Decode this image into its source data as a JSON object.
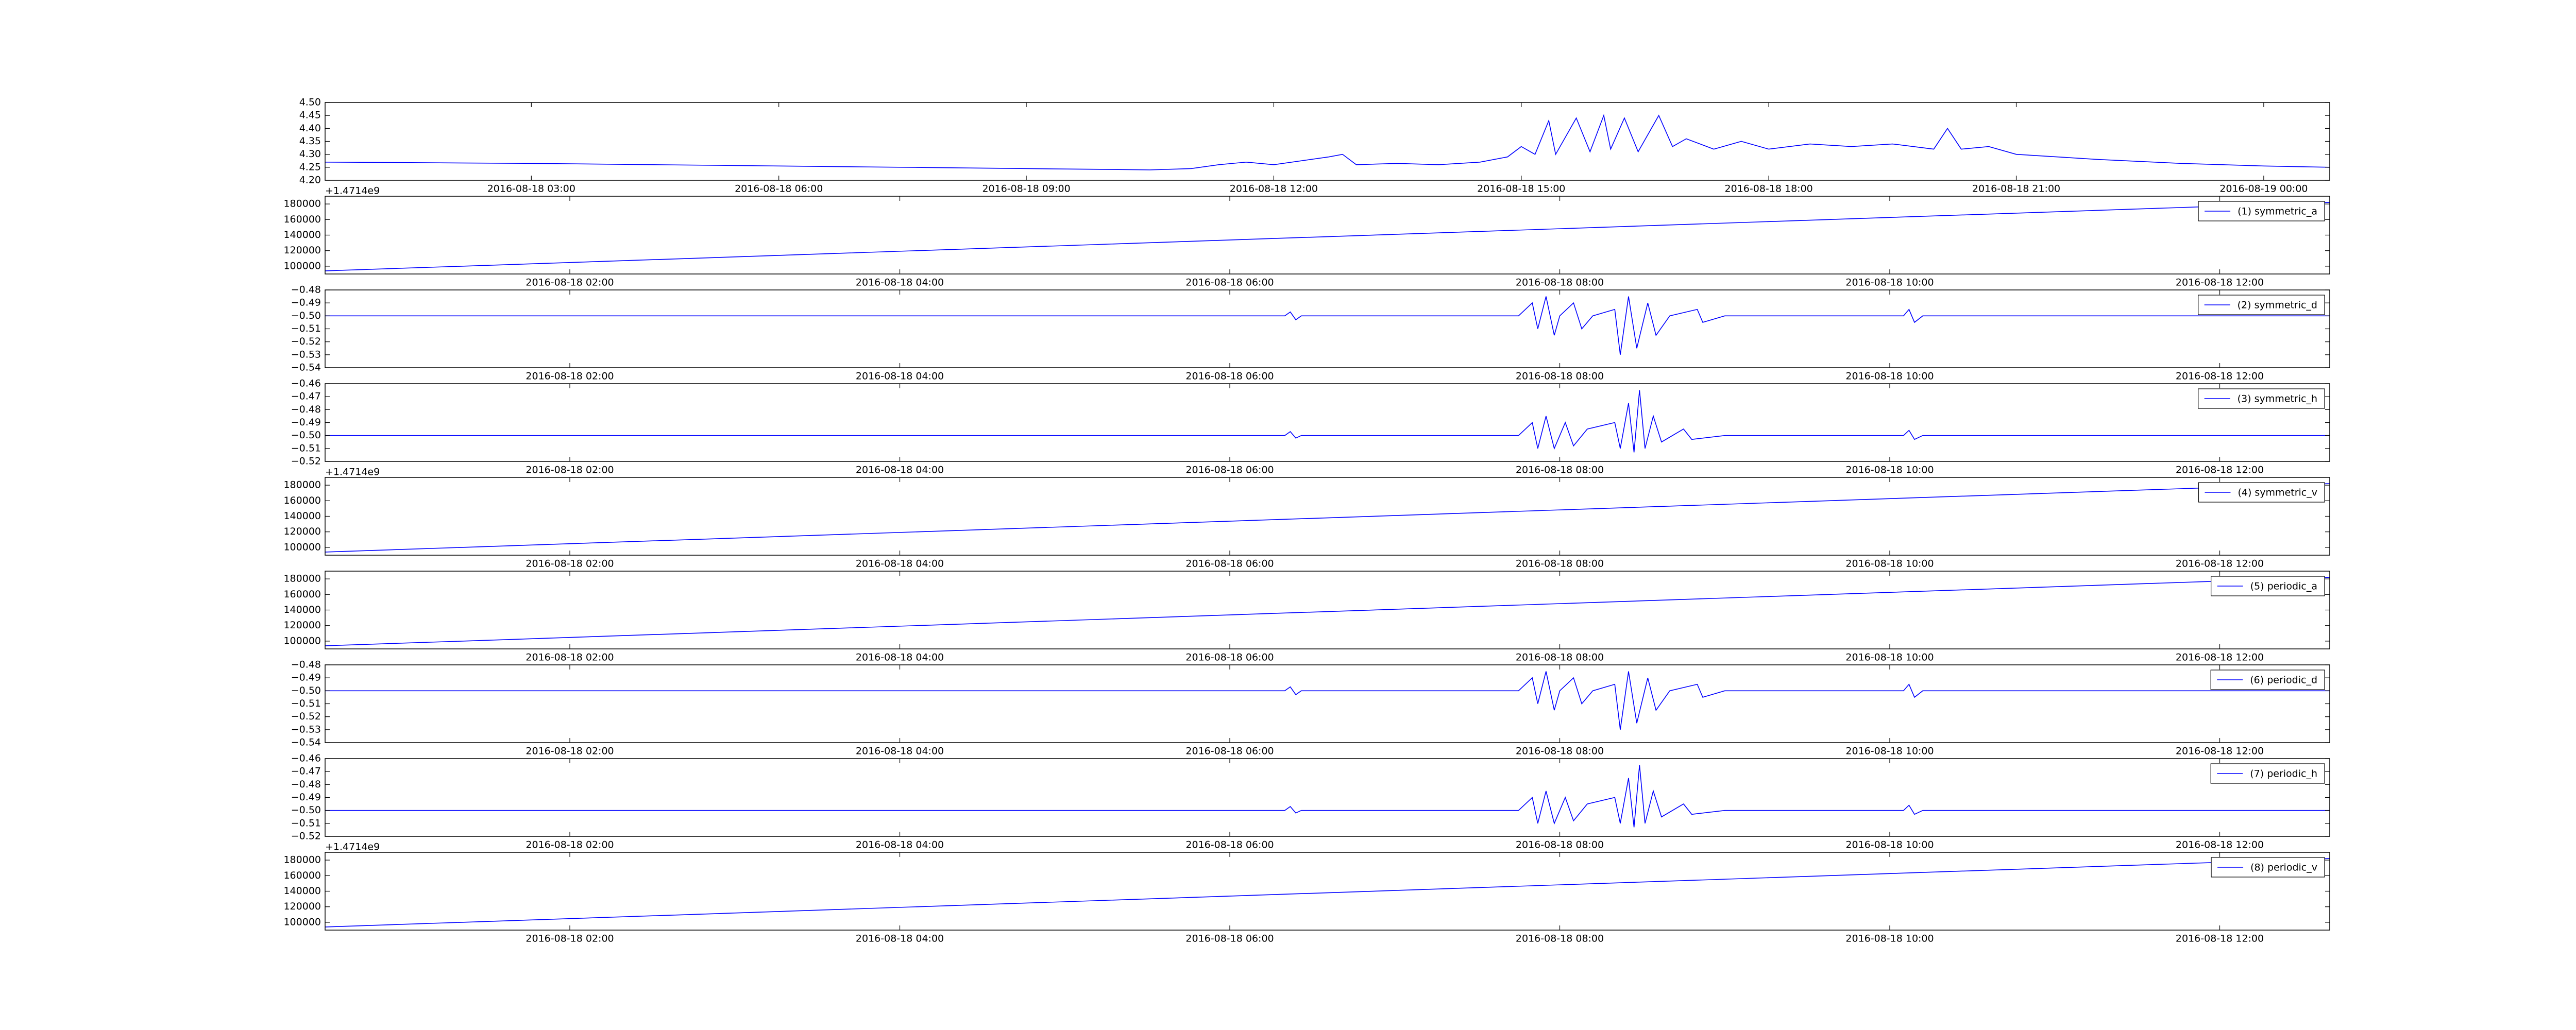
{
  "chart_data": [
    {
      "type": "line",
      "xlim": [
        "2016-08-18 00:30",
        "2016-08-19 00:48"
      ],
      "ylim": [
        4.2,
        4.5
      ],
      "xticks": [
        "2016-08-18 03:00",
        "2016-08-18 06:00",
        "2016-08-18 09:00",
        "2016-08-18 12:00",
        "2016-08-18 15:00",
        "2016-08-18 18:00",
        "2016-08-18 21:00",
        "2016-08-19 00:00"
      ],
      "yticks": [
        {
          "value": 4.2,
          "label": "4.20"
        },
        4.25,
        {
          "value": 4.3,
          "label": "4.30"
        },
        4.35,
        {
          "value": 4.4,
          "label": "4.40"
        },
        4.45,
        {
          "value": 4.5,
          "label": "4.50"
        }
      ],
      "x": [
        "2016-08-18 00:30",
        "2016-08-18 03:00",
        "2016-08-18 06:00",
        "2016-08-18 09:00",
        "2016-08-18 10:30",
        "2016-08-18 11:00",
        "2016-08-18 11:20",
        "2016-08-18 11:40",
        "2016-08-18 12:00",
        "2016-08-18 12:40",
        "2016-08-18 12:50",
        "2016-08-18 13:00",
        "2016-08-18 13:30",
        "2016-08-18 14:00",
        "2016-08-18 14:30",
        "2016-08-18 14:50",
        "2016-08-18 15:00",
        "2016-08-18 15:10",
        "2016-08-18 15:20",
        "2016-08-18 15:25",
        "2016-08-18 15:40",
        "2016-08-18 15:50",
        "2016-08-18 16:00",
        "2016-08-18 16:05",
        "2016-08-18 16:15",
        "2016-08-18 16:25",
        "2016-08-18 16:40",
        "2016-08-18 16:50",
        "2016-08-18 17:00",
        "2016-08-18 17:20",
        "2016-08-18 17:40",
        "2016-08-18 18:00",
        "2016-08-18 18:30",
        "2016-08-18 19:00",
        "2016-08-18 19:30",
        "2016-08-18 20:00",
        "2016-08-18 20:10",
        "2016-08-18 20:20",
        "2016-08-18 20:40",
        "2016-08-18 21:00",
        "2016-08-18 21:30",
        "2016-08-18 22:00",
        "2016-08-18 23:00",
        "2016-08-19 00:00",
        "2016-08-19 00:48"
      ],
      "series": [
        {
          "color": "#0000ff",
          "values": [
            4.27,
            4.265,
            4.255,
            4.245,
            4.24,
            4.245,
            4.26,
            4.27,
            4.26,
            4.29,
            4.3,
            4.26,
            4.265,
            4.26,
            4.27,
            4.29,
            4.33,
            4.3,
            4.43,
            4.3,
            4.44,
            4.31,
            4.45,
            4.32,
            4.44,
            4.31,
            4.45,
            4.33,
            4.36,
            4.32,
            4.35,
            4.32,
            4.34,
            4.33,
            4.34,
            4.32,
            4.4,
            4.32,
            4.33,
            4.3,
            4.29,
            4.28,
            4.265,
            4.255,
            4.25
          ]
        }
      ]
    },
    {
      "type": "line",
      "xlim": [
        "2016-08-18 00:31",
        "2016-08-18 12:40"
      ],
      "ylim": [
        90000,
        190000
      ],
      "y_offset": "+1.4714e9",
      "legend": "upper right",
      "xticks": [
        "2016-08-18 02:00",
        "2016-08-18 04:00",
        "2016-08-18 06:00",
        "2016-08-18 08:00",
        "2016-08-18 10:00",
        "2016-08-18 12:00"
      ],
      "yticks": [
        100000,
        120000,
        140000,
        160000,
        180000
      ],
      "x": [
        "2016-08-18 00:31",
        "2016-08-18 12:40"
      ],
      "series": [
        {
          "name": "(1) symmetric_a",
          "color": "#0000ff",
          "values": [
            94000,
            182000
          ]
        }
      ]
    },
    {
      "type": "line",
      "xlim": [
        "2016-08-18 00:31",
        "2016-08-18 12:40"
      ],
      "ylim": [
        -0.54,
        -0.48
      ],
      "legend": "upper right",
      "xticks": [
        "2016-08-18 02:00",
        "2016-08-18 04:00",
        "2016-08-18 06:00",
        "2016-08-18 08:00",
        "2016-08-18 10:00",
        "2016-08-18 12:00"
      ],
      "yticks": [
        {
          "value": -0.54,
          "label": "−0.54"
        },
        {
          "value": -0.53,
          "label": "−0.53"
        },
        {
          "value": -0.52,
          "label": "−0.52"
        },
        {
          "value": -0.51,
          "label": "−0.51"
        },
        {
          "value": -0.5,
          "label": "−0.50"
        },
        {
          "value": -0.49,
          "label": "−0.49"
        },
        {
          "value": -0.48,
          "label": "−0.48"
        }
      ],
      "x": [
        "2016-08-18 00:31",
        "2016-08-18 06:20",
        "2016-08-18 06:22",
        "2016-08-18 06:24",
        "2016-08-18 06:26",
        "2016-08-18 07:45",
        "2016-08-18 07:50",
        "2016-08-18 07:52",
        "2016-08-18 07:55",
        "2016-08-18 07:58",
        "2016-08-18 08:00",
        "2016-08-18 08:05",
        "2016-08-18 08:08",
        "2016-08-18 08:12",
        "2016-08-18 08:20",
        "2016-08-18 08:22",
        "2016-08-18 08:25",
        "2016-08-18 08:28",
        "2016-08-18 08:32",
        "2016-08-18 08:35",
        "2016-08-18 08:40",
        "2016-08-18 08:50",
        "2016-08-18 08:52",
        "2016-08-18 09:00",
        "2016-08-18 10:05",
        "2016-08-18 10:07",
        "2016-08-18 10:09",
        "2016-08-18 10:12",
        "2016-08-18 12:40"
      ],
      "series": [
        {
          "name": "(2) symmetric_d",
          "color": "#0000ff",
          "values": [
            -0.5,
            -0.5,
            -0.497,
            -0.503,
            -0.5,
            -0.5,
            -0.49,
            -0.51,
            -0.485,
            -0.515,
            -0.5,
            -0.49,
            -0.51,
            -0.5,
            -0.495,
            -0.53,
            -0.485,
            -0.525,
            -0.49,
            -0.515,
            -0.5,
            -0.495,
            -0.505,
            -0.5,
            -0.5,
            -0.495,
            -0.505,
            -0.5,
            -0.5
          ]
        }
      ]
    },
    {
      "type": "line",
      "xlim": [
        "2016-08-18 00:31",
        "2016-08-18 12:40"
      ],
      "ylim": [
        -0.52,
        -0.46
      ],
      "legend": "upper right",
      "xticks": [
        "2016-08-18 02:00",
        "2016-08-18 04:00",
        "2016-08-18 06:00",
        "2016-08-18 08:00",
        "2016-08-18 10:00",
        "2016-08-18 12:00"
      ],
      "yticks": [
        {
          "value": -0.52,
          "label": "−0.52"
        },
        {
          "value": -0.51,
          "label": "−0.51"
        },
        {
          "value": -0.5,
          "label": "−0.50"
        },
        {
          "value": -0.49,
          "label": "−0.49"
        },
        {
          "value": -0.48,
          "label": "−0.48"
        },
        {
          "value": -0.47,
          "label": "−0.47"
        },
        {
          "value": -0.46,
          "label": "−0.46"
        }
      ],
      "x": [
        "2016-08-18 00:31",
        "2016-08-18 06:20",
        "2016-08-18 06:22",
        "2016-08-18 06:24",
        "2016-08-18 06:26",
        "2016-08-18 07:45",
        "2016-08-18 07:50",
        "2016-08-18 07:52",
        "2016-08-18 07:55",
        "2016-08-18 07:58",
        "2016-08-18 08:02",
        "2016-08-18 08:05",
        "2016-08-18 08:10",
        "2016-08-18 08:20",
        "2016-08-18 08:22",
        "2016-08-18 08:25",
        "2016-08-18 08:27",
        "2016-08-18 08:29",
        "2016-08-18 08:31",
        "2016-08-18 08:34",
        "2016-08-18 08:37",
        "2016-08-18 08:45",
        "2016-08-18 08:48",
        "2016-08-18 09:00",
        "2016-08-18 10:05",
        "2016-08-18 10:07",
        "2016-08-18 10:09",
        "2016-08-18 10:12",
        "2016-08-18 12:40"
      ],
      "series": [
        {
          "name": "(3) symmetric_h",
          "color": "#0000ff",
          "values": [
            -0.5,
            -0.5,
            -0.497,
            -0.502,
            -0.5,
            -0.5,
            -0.49,
            -0.51,
            -0.485,
            -0.51,
            -0.49,
            -0.508,
            -0.495,
            -0.49,
            -0.51,
            -0.475,
            -0.513,
            -0.465,
            -0.51,
            -0.485,
            -0.505,
            -0.495,
            -0.503,
            -0.5,
            -0.5,
            -0.496,
            -0.503,
            -0.5,
            -0.5
          ]
        }
      ]
    },
    {
      "type": "line",
      "xlim": [
        "2016-08-18 00:31",
        "2016-08-18 12:40"
      ],
      "ylim": [
        90000,
        190000
      ],
      "y_offset": "+1.4714e9",
      "legend": "upper right",
      "xticks": [
        "2016-08-18 02:00",
        "2016-08-18 04:00",
        "2016-08-18 06:00",
        "2016-08-18 08:00",
        "2016-08-18 10:00",
        "2016-08-18 12:00"
      ],
      "yticks": [
        100000,
        120000,
        140000,
        160000,
        180000
      ],
      "x": [
        "2016-08-18 00:31",
        "2016-08-18 12:40"
      ],
      "series": [
        {
          "name": "(4) symmetric_v",
          "color": "#0000ff",
          "values": [
            94000,
            182000
          ]
        }
      ]
    },
    {
      "type": "line",
      "xlim": [
        "2016-08-18 00:31",
        "2016-08-18 12:40"
      ],
      "ylim": [
        90000,
        190000
      ],
      "legend": "upper right",
      "xticks": [
        "2016-08-18 02:00",
        "2016-08-18 04:00",
        "2016-08-18 06:00",
        "2016-08-18 08:00",
        "2016-08-18 10:00",
        "2016-08-18 12:00"
      ],
      "yticks": [
        100000,
        120000,
        140000,
        160000,
        180000
      ],
      "x": [
        "2016-08-18 00:31",
        "2016-08-18 12:40"
      ],
      "series": [
        {
          "name": "(5) periodic_a",
          "color": "#0000ff",
          "values": [
            94000,
            182000
          ]
        }
      ]
    },
    {
      "type": "line",
      "xlim": [
        "2016-08-18 00:31",
        "2016-08-18 12:40"
      ],
      "ylim": [
        -0.54,
        -0.48
      ],
      "legend": "upper right",
      "xticks": [
        "2016-08-18 02:00",
        "2016-08-18 04:00",
        "2016-08-18 06:00",
        "2016-08-18 08:00",
        "2016-08-18 10:00",
        "2016-08-18 12:00"
      ],
      "yticks": [
        {
          "value": -0.54,
          "label": "−0.54"
        },
        {
          "value": -0.53,
          "label": "−0.53"
        },
        {
          "value": -0.52,
          "label": "−0.52"
        },
        {
          "value": -0.51,
          "label": "−0.51"
        },
        {
          "value": -0.5,
          "label": "−0.50"
        },
        {
          "value": -0.49,
          "label": "−0.49"
        },
        {
          "value": -0.48,
          "label": "−0.48"
        }
      ],
      "x": [
        "2016-08-18 00:31",
        "2016-08-18 06:20",
        "2016-08-18 06:22",
        "2016-08-18 06:24",
        "2016-08-18 06:26",
        "2016-08-18 07:45",
        "2016-08-18 07:50",
        "2016-08-18 07:52",
        "2016-08-18 07:55",
        "2016-08-18 07:58",
        "2016-08-18 08:00",
        "2016-08-18 08:05",
        "2016-08-18 08:08",
        "2016-08-18 08:12",
        "2016-08-18 08:20",
        "2016-08-18 08:22",
        "2016-08-18 08:25",
        "2016-08-18 08:28",
        "2016-08-18 08:32",
        "2016-08-18 08:35",
        "2016-08-18 08:40",
        "2016-08-18 08:50",
        "2016-08-18 08:52",
        "2016-08-18 09:00",
        "2016-08-18 10:05",
        "2016-08-18 10:07",
        "2016-08-18 10:09",
        "2016-08-18 10:12",
        "2016-08-18 12:40"
      ],
      "series": [
        {
          "name": "(6) periodic_d",
          "color": "#0000ff",
          "values": [
            -0.5,
            -0.5,
            -0.497,
            -0.503,
            -0.5,
            -0.5,
            -0.49,
            -0.51,
            -0.485,
            -0.515,
            -0.5,
            -0.49,
            -0.51,
            -0.5,
            -0.495,
            -0.53,
            -0.485,
            -0.525,
            -0.49,
            -0.515,
            -0.5,
            -0.495,
            -0.505,
            -0.5,
            -0.5,
            -0.495,
            -0.505,
            -0.5,
            -0.5
          ]
        }
      ]
    },
    {
      "type": "line",
      "xlim": [
        "2016-08-18 00:31",
        "2016-08-18 12:40"
      ],
      "ylim": [
        -0.52,
        -0.46
      ],
      "legend": "upper right",
      "xticks": [
        "2016-08-18 02:00",
        "2016-08-18 04:00",
        "2016-08-18 06:00",
        "2016-08-18 08:00",
        "2016-08-18 10:00",
        "2016-08-18 12:00"
      ],
      "yticks": [
        {
          "value": -0.52,
          "label": "−0.52"
        },
        {
          "value": -0.51,
          "label": "−0.51"
        },
        {
          "value": -0.5,
          "label": "−0.50"
        },
        {
          "value": -0.49,
          "label": "−0.49"
        },
        {
          "value": -0.48,
          "label": "−0.48"
        },
        {
          "value": -0.47,
          "label": "−0.47"
        },
        {
          "value": -0.46,
          "label": "−0.46"
        }
      ],
      "x": [
        "2016-08-18 00:31",
        "2016-08-18 06:20",
        "2016-08-18 06:22",
        "2016-08-18 06:24",
        "2016-08-18 06:26",
        "2016-08-18 07:45",
        "2016-08-18 07:50",
        "2016-08-18 07:52",
        "2016-08-18 07:55",
        "2016-08-18 07:58",
        "2016-08-18 08:02",
        "2016-08-18 08:05",
        "2016-08-18 08:10",
        "2016-08-18 08:20",
        "2016-08-18 08:22",
        "2016-08-18 08:25",
        "2016-08-18 08:27",
        "2016-08-18 08:29",
        "2016-08-18 08:31",
        "2016-08-18 08:34",
        "2016-08-18 08:37",
        "2016-08-18 08:45",
        "2016-08-18 08:48",
        "2016-08-18 09:00",
        "2016-08-18 10:05",
        "2016-08-18 10:07",
        "2016-08-18 10:09",
        "2016-08-18 10:12",
        "2016-08-18 12:40"
      ],
      "series": [
        {
          "name": "(7) periodic_h",
          "color": "#0000ff",
          "values": [
            -0.5,
            -0.5,
            -0.497,
            -0.502,
            -0.5,
            -0.5,
            -0.49,
            -0.51,
            -0.485,
            -0.51,
            -0.49,
            -0.508,
            -0.495,
            -0.49,
            -0.51,
            -0.475,
            -0.513,
            -0.465,
            -0.51,
            -0.485,
            -0.505,
            -0.495,
            -0.503,
            -0.5,
            -0.5,
            -0.496,
            -0.503,
            -0.5,
            -0.5
          ]
        }
      ]
    },
    {
      "type": "line",
      "xlim": [
        "2016-08-18 00:31",
        "2016-08-18 12:40"
      ],
      "ylim": [
        90000,
        190000
      ],
      "y_offset": "+1.4714e9",
      "legend": "upper right",
      "xticks": [
        "2016-08-18 02:00",
        "2016-08-18 04:00",
        "2016-08-18 06:00",
        "2016-08-18 08:00",
        "2016-08-18 10:00",
        "2016-08-18 12:00"
      ],
      "yticks": [
        100000,
        120000,
        140000,
        160000,
        180000
      ],
      "x": [
        "2016-08-18 00:31",
        "2016-08-18 12:40"
      ],
      "series": [
        {
          "name": "(8) periodic_v",
          "color": "#0000ff",
          "values": [
            94000,
            182000
          ]
        }
      ]
    }
  ]
}
